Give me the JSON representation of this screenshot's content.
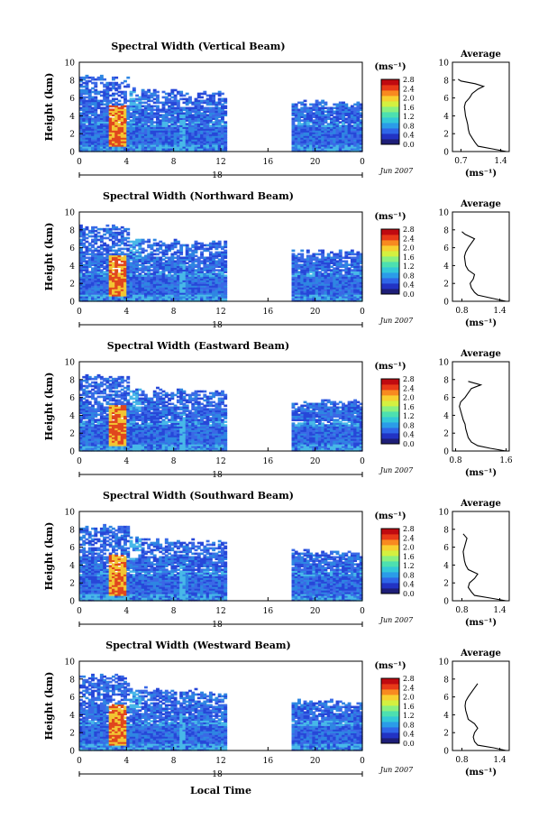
{
  "figure": {
    "x_title": "Local Time",
    "date_label": "Jun 2007",
    "day_label": "18",
    "colorbar_unit": "(ms⁻¹)",
    "colorbar_ticks": [
      "0.0",
      "0.4",
      "0.8",
      "1.2",
      "1.6",
      "2.0",
      "2.4",
      "2.8"
    ],
    "colorscale": [
      "#1e1e78",
      "#2233c4",
      "#2f66e8",
      "#2b9ce8",
      "#33c8d8",
      "#4de0b0",
      "#8af080",
      "#d4f040",
      "#f8d030",
      "#f88a20",
      "#e83a18",
      "#c00a10"
    ],
    "beam_palette": [
      "#2747d8",
      "#3a69e6",
      "#2f86e2"
    ],
    "stripe_color": "#48b8e8",
    "hot_color": "#e0461e",
    "warm_color": "#f2c533"
  },
  "chart_data": [
    {
      "type": "heatmap",
      "title": "Spectral Width (Vertical Beam)",
      "xlabel": "Local Time",
      "ylabel": "Height (km)",
      "x_ticks": [
        "0",
        "4",
        "8",
        "12",
        "16",
        "20",
        "0"
      ],
      "y_ticks": [
        "0",
        "2",
        "4",
        "6",
        "8",
        "10"
      ],
      "xlim": [
        0,
        24
      ],
      "ylim": [
        0,
        10
      ],
      "data_segments": [
        [
          0,
          12.5
        ],
        [
          18,
          24
        ]
      ],
      "colorbar": {
        "label": "(ms⁻¹)",
        "range": [
          0.0,
          2.8
        ]
      },
      "average_profile": {
        "title": "Average",
        "xlabel": "(ms⁻¹)",
        "x_ticks": [
          "0.7",
          "1.4"
        ],
        "xlim": [
          0.55,
          1.55
        ],
        "y_ticks": [
          "0",
          "2",
          "4",
          "6",
          "8",
          "10"
        ],
        "ylim": [
          0,
          10
        ],
        "height_km": [
          0.0,
          0.3,
          0.6,
          1.0,
          1.5,
          2.0,
          2.5,
          3.0,
          3.5,
          4.0,
          4.5,
          5.0,
          5.5,
          6.0,
          6.5,
          7.0,
          7.3,
          7.6,
          7.9,
          8.1
        ],
        "value": [
          1.5,
          1.25,
          1.0,
          0.95,
          0.9,
          0.85,
          0.83,
          0.82,
          0.8,
          0.78,
          0.77,
          0.76,
          0.78,
          0.85,
          0.9,
          1.0,
          1.1,
          0.95,
          0.7,
          0.65
        ]
      }
    },
    {
      "type": "heatmap",
      "title": "Spectral Width (Northward Beam)",
      "xlabel": "Local Time",
      "ylabel": "Height (km)",
      "x_ticks": [
        "0",
        "4",
        "8",
        "12",
        "16",
        "20",
        "0"
      ],
      "y_ticks": [
        "0",
        "2",
        "4",
        "6",
        "8",
        "10"
      ],
      "xlim": [
        0,
        24
      ],
      "ylim": [
        0,
        10
      ],
      "data_segments": [
        [
          0,
          12.5
        ],
        [
          18,
          24
        ]
      ],
      "colorbar": {
        "label": "(ms⁻¹)",
        "range": [
          0.0,
          2.8
        ]
      },
      "average_profile": {
        "title": "Average",
        "xlabel": "(ms⁻¹)",
        "x_ticks": [
          "0.8",
          "1.4"
        ],
        "xlim": [
          0.65,
          1.55
        ],
        "y_ticks": [
          "0",
          "2",
          "4",
          "6",
          "8",
          "10"
        ],
        "ylim": [
          0,
          10
        ],
        "height_km": [
          0.0,
          0.3,
          0.7,
          1.0,
          1.5,
          2.0,
          2.5,
          3.0,
          3.5,
          4.0,
          4.5,
          5.0,
          5.5,
          6.0,
          6.5,
          7.0,
          7.5,
          7.8
        ],
        "value": [
          1.5,
          1.3,
          1.05,
          1.0,
          0.95,
          0.93,
          0.98,
          1.0,
          0.9,
          0.86,
          0.85,
          0.84,
          0.86,
          0.9,
          0.95,
          1.0,
          0.85,
          0.8
        ]
      }
    },
    {
      "type": "heatmap",
      "title": "Spectral Width (Eastward Beam)",
      "xlabel": "Local Time",
      "ylabel": "Height (km)",
      "x_ticks": [
        "0",
        "4",
        "8",
        "12",
        "16",
        "20",
        "0"
      ],
      "y_ticks": [
        "0",
        "2",
        "4",
        "6",
        "8",
        "10"
      ],
      "xlim": [
        0,
        24
      ],
      "ylim": [
        0,
        10
      ],
      "data_segments": [
        [
          0,
          12.5
        ],
        [
          18,
          24
        ]
      ],
      "colorbar": {
        "label": "(ms⁻¹)",
        "range": [
          0.0,
          2.8
        ]
      },
      "average_profile": {
        "title": "Average",
        "xlabel": "(ms⁻¹)",
        "x_ticks": [
          "0.8",
          "1.6"
        ],
        "xlim": [
          0.75,
          1.65
        ],
        "y_ticks": [
          "0",
          "2",
          "4",
          "6",
          "8",
          "10"
        ],
        "ylim": [
          0,
          10
        ],
        "height_km": [
          0.0,
          0.3,
          0.6,
          1.0,
          1.5,
          2.0,
          2.5,
          3.0,
          3.5,
          4.0,
          4.5,
          5.0,
          5.5,
          6.0,
          6.5,
          7.0,
          7.4,
          7.8
        ],
        "value": [
          1.6,
          1.35,
          1.15,
          1.05,
          1.0,
          0.98,
          0.96,
          0.95,
          0.92,
          0.9,
          0.88,
          0.86,
          0.88,
          0.95,
          1.0,
          1.05,
          1.2,
          1.0
        ]
      }
    },
    {
      "type": "heatmap",
      "title": "Spectral Width (Southward Beam)",
      "xlabel": "Local Time",
      "ylabel": "Height (km)",
      "x_ticks": [
        "0",
        "4",
        "8",
        "12",
        "16",
        "20",
        "0"
      ],
      "y_ticks": [
        "0",
        "2",
        "4",
        "6",
        "8",
        "10"
      ],
      "xlim": [
        0,
        24
      ],
      "ylim": [
        0,
        10
      ],
      "data_segments": [
        [
          0,
          12.5
        ],
        [
          18,
          24
        ]
      ],
      "colorbar": {
        "label": "(ms⁻¹)",
        "range": [
          0.0,
          2.8
        ]
      },
      "average_profile": {
        "title": "Average",
        "xlabel": "(ms⁻¹)",
        "x_ticks": [
          "0.8",
          "1.4"
        ],
        "xlim": [
          0.65,
          1.55
        ],
        "y_ticks": [
          "0",
          "2",
          "4",
          "6",
          "8",
          "10"
        ],
        "ylim": [
          0,
          10
        ],
        "height_km": [
          0.0,
          0.3,
          0.6,
          1.0,
          1.5,
          2.0,
          2.5,
          3.0,
          3.5,
          4.0,
          4.5,
          5.0,
          5.5,
          6.0,
          6.5,
          7.0,
          7.5
        ],
        "value": [
          1.5,
          1.25,
          1.0,
          0.95,
          0.9,
          0.92,
          1.0,
          1.05,
          0.9,
          0.86,
          0.84,
          0.83,
          0.82,
          0.84,
          0.86,
          0.88,
          0.82
        ]
      }
    },
    {
      "type": "heatmap",
      "title": "Spectral Width (Westward Beam)",
      "xlabel": "Local Time",
      "ylabel": "Height (km)",
      "x_ticks": [
        "0",
        "4",
        "8",
        "12",
        "16",
        "20",
        "0"
      ],
      "y_ticks": [
        "0",
        "2",
        "4",
        "6",
        "8",
        "10"
      ],
      "xlim": [
        0,
        24
      ],
      "ylim": [
        0,
        10
      ],
      "data_segments": [
        [
          0,
          12.5
        ],
        [
          18,
          24
        ]
      ],
      "colorbar": {
        "label": "(ms⁻¹)",
        "range": [
          0.0,
          2.8
        ]
      },
      "average_profile": {
        "title": "Average",
        "xlabel": "(ms⁻¹)",
        "x_ticks": [
          "0.8",
          "1.4"
        ],
        "xlim": [
          0.65,
          1.55
        ],
        "y_ticks": [
          "0",
          "2",
          "4",
          "6",
          "8",
          "10"
        ],
        "ylim": [
          0,
          10
        ],
        "height_km": [
          0.0,
          0.3,
          0.6,
          1.0,
          1.5,
          2.0,
          2.5,
          3.0,
          3.5,
          4.0,
          4.5,
          5.0,
          5.5,
          6.0,
          6.5,
          7.0,
          7.5
        ],
        "value": [
          1.5,
          1.3,
          1.05,
          1.0,
          0.98,
          1.0,
          1.05,
          1.0,
          0.9,
          0.88,
          0.86,
          0.85,
          0.86,
          0.9,
          0.95,
          1.0,
          1.05
        ]
      }
    }
  ]
}
